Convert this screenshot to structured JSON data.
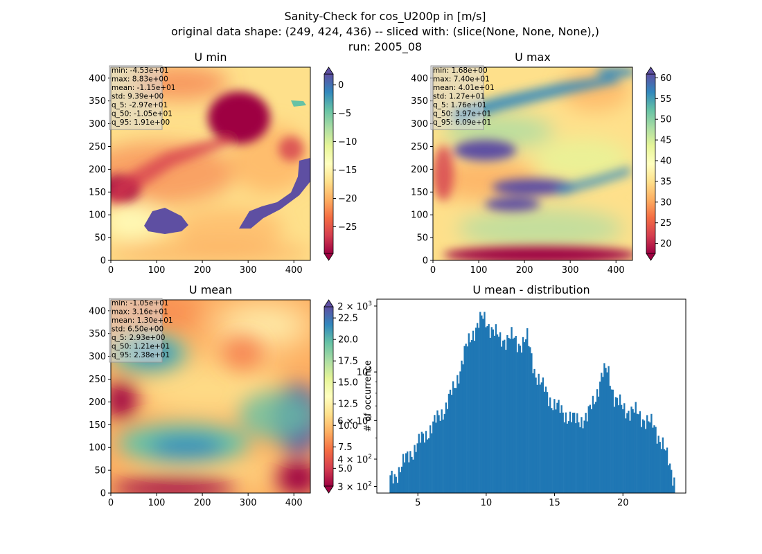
{
  "figure": {
    "title_line1": "Sanity-Check for cos_U200p in [m/s]",
    "title_line2": "original data shape: (249, 424, 436) -- sliced with: (slice(None, None, None),)",
    "title_line3": "run: 2005_08"
  },
  "chart_data": [
    {
      "type": "heatmap",
      "title": "U min",
      "colormap": "Spectral",
      "xlim": [
        0,
        436
      ],
      "ylim": [
        0,
        424
      ],
      "xticks": [
        0,
        100,
        200,
        300,
        400
      ],
      "yticks": [
        0,
        50,
        100,
        150,
        200,
        250,
        300,
        350,
        400
      ],
      "colorbar_range": [
        -29.7,
        1.91
      ],
      "colorbar_ticks": [
        -25,
        -20,
        -15,
        -10,
        -5,
        0
      ],
      "colorbar_extend": "both",
      "stats": [
        "min: -4.53e+01",
        "max: 8.83e+00",
        "mean: -1.15e+01",
        "std: 9.39e+00",
        "q_5: -2.97e+01",
        "q_50: -1.05e+01",
        "q_95: 1.91e+00"
      ]
    },
    {
      "type": "heatmap",
      "title": "U max",
      "colormap": "Spectral",
      "xlim": [
        0,
        436
      ],
      "ylim": [
        0,
        424
      ],
      "xticks": [
        0,
        100,
        200,
        300,
        400
      ],
      "yticks": [
        0,
        50,
        100,
        150,
        200,
        250,
        300,
        350,
        400
      ],
      "colorbar_range": [
        17.6,
        60.9
      ],
      "colorbar_ticks": [
        20,
        25,
        30,
        35,
        40,
        45,
        50,
        55,
        60
      ],
      "colorbar_extend": "both",
      "stats": [
        "min: 1.68e+00",
        "max: 7.40e+01",
        "mean: 4.01e+01",
        "std: 1.27e+01",
        "q_5: 1.76e+01",
        "q_50: 3.97e+01",
        "q_95: 6.09e+01"
      ]
    },
    {
      "type": "heatmap",
      "title": "U mean",
      "colormap": "Spectral",
      "xlim": [
        0,
        436
      ],
      "ylim": [
        0,
        424
      ],
      "xticks": [
        0,
        100,
        200,
        300,
        400
      ],
      "yticks": [
        0,
        50,
        100,
        150,
        200,
        250,
        300,
        350,
        400
      ],
      "colorbar_range": [
        2.93,
        23.8
      ],
      "colorbar_ticks": [
        5.0,
        7.5,
        10.0,
        12.5,
        15.0,
        17.5,
        20.0,
        22.5
      ],
      "colorbar_tick_labels": [
        "5.0",
        "7.5",
        "10.0",
        "12.5",
        "15.0",
        "17.5",
        "20.0",
        "22.5"
      ],
      "colorbar_extend": "both",
      "stats": [
        "min: -1.05e+01",
        "max: 3.16e+01",
        "mean: 1.30e+01",
        "std: 6.50e+00",
        "q_5: 2.93e+00",
        "q_50: 1.21e+01",
        "q_95: 2.38e+01"
      ]
    },
    {
      "type": "bar",
      "title": "U mean - distribution",
      "ylabel": "# of occurrence",
      "yscale": "log",
      "xlim": [
        2.0,
        24.6
      ],
      "ylim": [
        280,
        2150
      ],
      "xticks": [
        5,
        10,
        15,
        20
      ],
      "yticks_major": [
        300,
        400,
        600,
        1000,
        2000
      ],
      "ytick_labels": [
        [
          "3",
          "2"
        ],
        [
          "4",
          "2"
        ],
        [
          "6",
          "2"
        ],
        [
          "10",
          "3"
        ],
        [
          "2",
          "3"
        ]
      ],
      "ytick_prefix": [
        "×",
        "×",
        "×",
        "",
        "×"
      ],
      "bar_color": "#1f77b4",
      "hist_range": [
        2.93,
        23.8
      ],
      "bins": 200,
      "profile_x": [
        2.93,
        3.3,
        4.0,
        5.0,
        6.0,
        7.0,
        7.7,
        8.5,
        9.2,
        9.7,
        10.3,
        11.0,
        11.8,
        12.3,
        13.0,
        13.5,
        14.1,
        14.8,
        15.5,
        16.5,
        17.4,
        18.0,
        18.5,
        18.9,
        19.4,
        20.0,
        20.8,
        21.6,
        22.3,
        22.9,
        23.5,
        23.8
      ],
      "profile_y": [
        320,
        335,
        390,
        470,
        560,
        690,
        860,
        1270,
        1600,
        1760,
        1620,
        1400,
        1450,
        1340,
        1420,
        1030,
        860,
        730,
        660,
        600,
        620,
        780,
        980,
        1020,
        760,
        680,
        660,
        610,
        560,
        470,
        360,
        320
      ]
    }
  ]
}
